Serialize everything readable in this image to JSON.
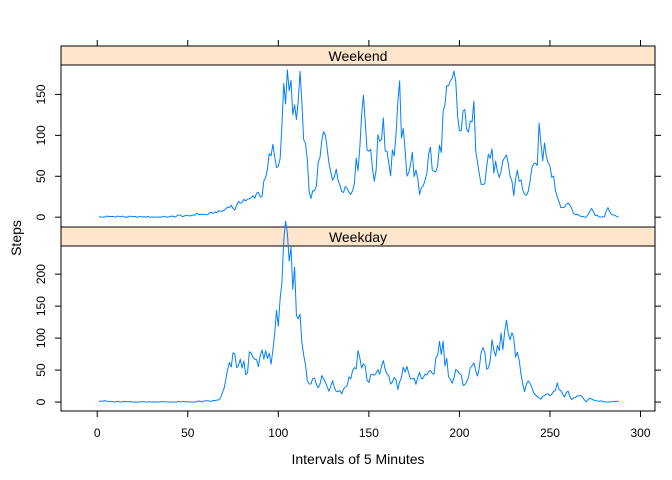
{
  "chart_data": {
    "type": "line",
    "xlabel": "Intervals of 5 Minutes",
    "ylabel": "Steps",
    "xlim": [
      -20,
      308
    ],
    "x_ticks": [
      0,
      50,
      100,
      150,
      200,
      250,
      300
    ],
    "x_tick_labels": [
      "0",
      "50",
      "100",
      "150",
      "200",
      "250",
      "300"
    ],
    "line_color": "#0080ff",
    "strip_color": "#ffe5cc",
    "panels": [
      {
        "name": "Weekend",
        "ylim": [
          -12,
          186
        ],
        "y_ticks": [
          0,
          50,
          100,
          150
        ],
        "y_tick_labels": [
          "0",
          "50",
          "100",
          "150"
        ],
        "anchors": [
          [
            1,
            0
          ],
          [
            10,
            1
          ],
          [
            20,
            0
          ],
          [
            30,
            0
          ],
          [
            40,
            0
          ],
          [
            45,
            2
          ],
          [
            50,
            1
          ],
          [
            55,
            4
          ],
          [
            60,
            3
          ],
          [
            65,
            6
          ],
          [
            70,
            8
          ],
          [
            73,
            15
          ],
          [
            76,
            10
          ],
          [
            80,
            22
          ],
          [
            84,
            20
          ],
          [
            88,
            30
          ],
          [
            91,
            28
          ],
          [
            94,
            55
          ],
          [
            96,
            80
          ],
          [
            98,
            75
          ],
          [
            100,
            60
          ],
          [
            102,
            120
          ],
          [
            104,
            160
          ],
          [
            106,
            145
          ],
          [
            108,
            155
          ],
          [
            110,
            100
          ],
          [
            112,
            175
          ],
          [
            114,
            90
          ],
          [
            116,
            60
          ],
          [
            118,
            20
          ],
          [
            120,
            35
          ],
          [
            122,
            55
          ],
          [
            125,
            100
          ],
          [
            127,
            80
          ],
          [
            130,
            55
          ],
          [
            132,
            50
          ],
          [
            135,
            40
          ],
          [
            138,
            35
          ],
          [
            140,
            30
          ],
          [
            142,
            50
          ],
          [
            144,
            70
          ],
          [
            147,
            150
          ],
          [
            149,
            100
          ],
          [
            151,
            70
          ],
          [
            153,
            50
          ],
          [
            156,
            100
          ],
          [
            158,
            120
          ],
          [
            160,
            80
          ],
          [
            162,
            60
          ],
          [
            165,
            100
          ],
          [
            167,
            140
          ],
          [
            169,
            90
          ],
          [
            171,
            60
          ],
          [
            174,
            70
          ],
          [
            176,
            50
          ],
          [
            178,
            30
          ],
          [
            181,
            50
          ],
          [
            184,
            80
          ],
          [
            186,
            50
          ],
          [
            188,
            60
          ],
          [
            190,
            100
          ],
          [
            192,
            130
          ],
          [
            194,
            140
          ],
          [
            196,
            155
          ],
          [
            198,
            160
          ],
          [
            200,
            100
          ],
          [
            202,
            110
          ],
          [
            204,
            130
          ],
          [
            206,
            100
          ],
          [
            208,
            120
          ],
          [
            210,
            80
          ],
          [
            212,
            50
          ],
          [
            214,
            40
          ],
          [
            216,
            80
          ],
          [
            218,
            70
          ],
          [
            220,
            60
          ],
          [
            222,
            40
          ],
          [
            224,
            60
          ],
          [
            226,
            80
          ],
          [
            228,
            50
          ],
          [
            230,
            30
          ],
          [
            232,
            60
          ],
          [
            234,
            40
          ],
          [
            236,
            25
          ],
          [
            238,
            35
          ],
          [
            240,
            50
          ],
          [
            242,
            60
          ],
          [
            244,
            95
          ],
          [
            246,
            80
          ],
          [
            248,
            85
          ],
          [
            250,
            70
          ],
          [
            252,
            50
          ],
          [
            254,
            25
          ],
          [
            256,
            15
          ],
          [
            258,
            10
          ],
          [
            260,
            20
          ],
          [
            263,
            5
          ],
          [
            266,
            2
          ],
          [
            270,
            0
          ],
          [
            273,
            12
          ],
          [
            275,
            2
          ],
          [
            278,
            1
          ],
          [
            280,
            0
          ],
          [
            282,
            12
          ],
          [
            284,
            3
          ],
          [
            286,
            1
          ],
          [
            288,
            0
          ]
        ]
      },
      {
        "name": "Weekday",
        "ylim": [
          -14,
          244
        ],
        "y_ticks": [
          0,
          50,
          100,
          150,
          200
        ],
        "y_tick_labels": [
          "0",
          "50",
          "100",
          "150",
          "200"
        ],
        "anchors": [
          [
            1,
            2
          ],
          [
            10,
            0
          ],
          [
            20,
            0
          ],
          [
            30,
            0
          ],
          [
            40,
            0
          ],
          [
            50,
            0
          ],
          [
            60,
            1
          ],
          [
            65,
            2
          ],
          [
            68,
            5
          ],
          [
            70,
            20
          ],
          [
            72,
            45
          ],
          [
            74,
            60
          ],
          [
            76,
            70
          ],
          [
            78,
            55
          ],
          [
            80,
            60
          ],
          [
            82,
            50
          ],
          [
            84,
            65
          ],
          [
            86,
            70
          ],
          [
            88,
            55
          ],
          [
            90,
            65
          ],
          [
            92,
            80
          ],
          [
            94,
            70
          ],
          [
            96,
            75
          ],
          [
            98,
            90
          ],
          [
            100,
            150
          ],
          [
            102,
            200
          ],
          [
            104,
            232
          ],
          [
            106,
            215
          ],
          [
            108,
            190
          ],
          [
            110,
            170
          ],
          [
            112,
            120
          ],
          [
            114,
            80
          ],
          [
            116,
            40
          ],
          [
            118,
            30
          ],
          [
            120,
            35
          ],
          [
            122,
            20
          ],
          [
            124,
            40
          ],
          [
            126,
            30
          ],
          [
            128,
            20
          ],
          [
            130,
            35
          ],
          [
            132,
            20
          ],
          [
            135,
            15
          ],
          [
            138,
            30
          ],
          [
            140,
            40
          ],
          [
            142,
            55
          ],
          [
            144,
            75
          ],
          [
            146,
            60
          ],
          [
            148,
            50
          ],
          [
            150,
            30
          ],
          [
            152,
            50
          ],
          [
            154,
            40
          ],
          [
            156,
            45
          ],
          [
            158,
            60
          ],
          [
            160,
            40
          ],
          [
            162,
            30
          ],
          [
            164,
            40
          ],
          [
            166,
            20
          ],
          [
            168,
            45
          ],
          [
            170,
            55
          ],
          [
            172,
            40
          ],
          [
            174,
            35
          ],
          [
            176,
            30
          ],
          [
            178,
            45
          ],
          [
            180,
            40
          ],
          [
            182,
            35
          ],
          [
            184,
            45
          ],
          [
            186,
            50
          ],
          [
            188,
            80
          ],
          [
            190,
            95
          ],
          [
            192,
            70
          ],
          [
            194,
            50
          ],
          [
            196,
            30
          ],
          [
            198,
            45
          ],
          [
            200,
            40
          ],
          [
            202,
            30
          ],
          [
            205,
            40
          ],
          [
            208,
            60
          ],
          [
            210,
            50
          ],
          [
            212,
            75
          ],
          [
            214,
            65
          ],
          [
            216,
            60
          ],
          [
            218,
            80
          ],
          [
            220,
            75
          ],
          [
            222,
            85
          ],
          [
            224,
            100
          ],
          [
            226,
            115
          ],
          [
            228,
            95
          ],
          [
            230,
            85
          ],
          [
            232,
            70
          ],
          [
            234,
            40
          ],
          [
            236,
            20
          ],
          [
            238,
            35
          ],
          [
            240,
            20
          ],
          [
            242,
            10
          ],
          [
            245,
            5
          ],
          [
            248,
            15
          ],
          [
            250,
            10
          ],
          [
            252,
            15
          ],
          [
            254,
            25
          ],
          [
            256,
            20
          ],
          [
            258,
            10
          ],
          [
            260,
            15
          ],
          [
            262,
            5
          ],
          [
            265,
            10
          ],
          [
            268,
            8
          ],
          [
            270,
            0
          ],
          [
            272,
            5
          ],
          [
            275,
            2
          ],
          [
            278,
            1
          ],
          [
            280,
            0
          ],
          [
            284,
            0
          ],
          [
            286,
            2
          ],
          [
            288,
            1
          ]
        ]
      }
    ]
  }
}
